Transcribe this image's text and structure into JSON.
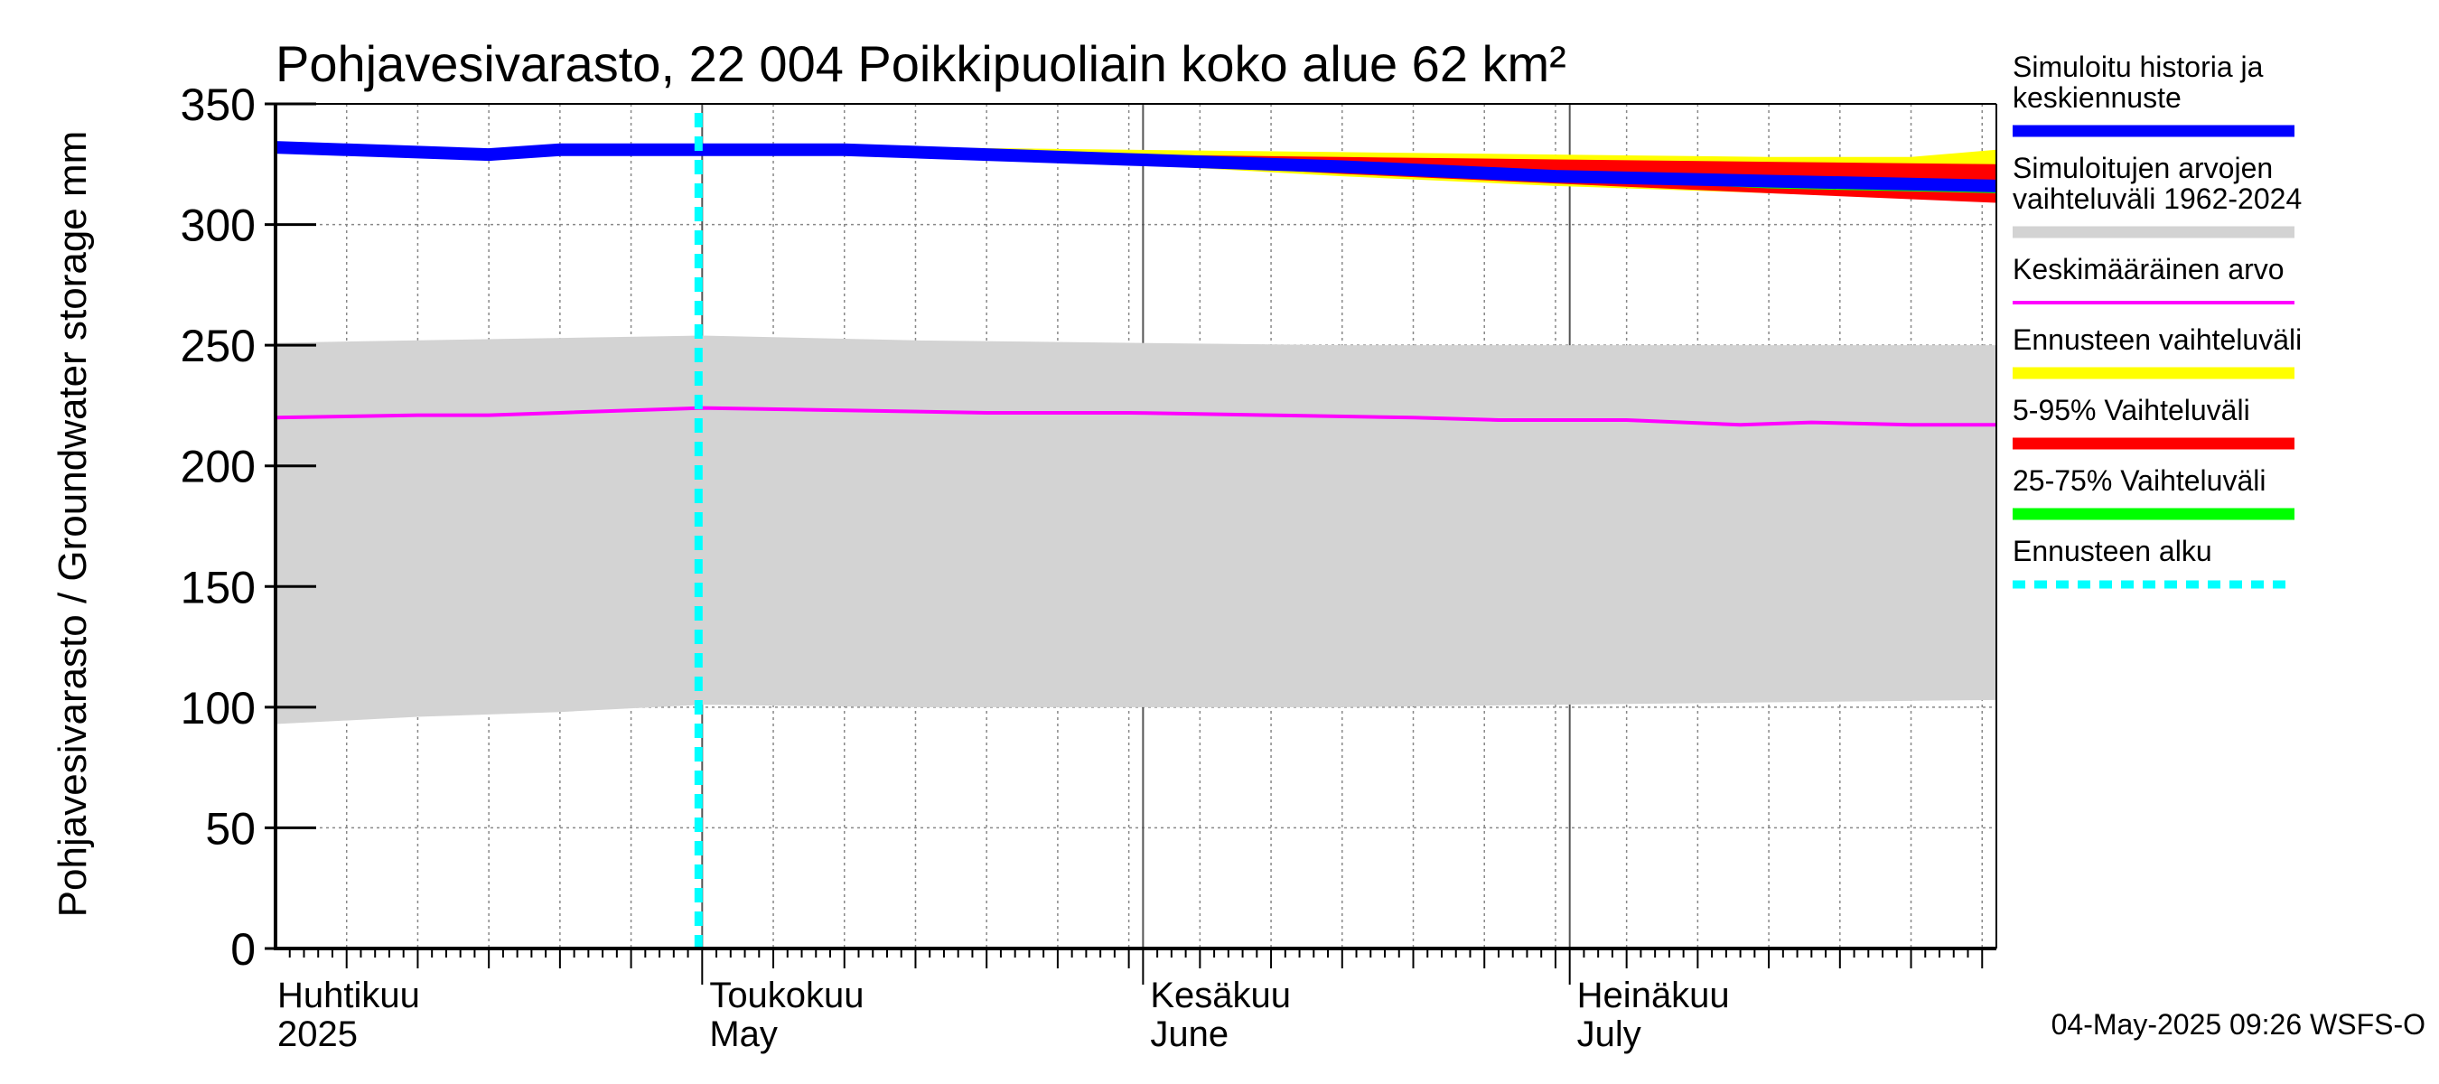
{
  "chart_data": {
    "type": "area",
    "title": "Pohjavesivarasto, 22 004 Poikkipuoliain koko alue 62 km²",
    "ylabel": "Pohjavesivarasto / Groundwater storage   mm",
    "ylim": [
      0,
      350
    ],
    "yticks": [
      0,
      50,
      100,
      150,
      200,
      250,
      300,
      350
    ],
    "xlim_days": [
      0,
      121
    ],
    "x_months": [
      {
        "day": 0,
        "line1": "Huhtikuu",
        "line2": "2025"
      },
      {
        "day": 30,
        "line1": "Toukokuu",
        "line2": "May"
      },
      {
        "day": 61,
        "line1": "Kesäkuu",
        "line2": "June"
      },
      {
        "day": 91,
        "line1": "Heinäkuu",
        "line2": "July"
      }
    ],
    "forecast_start_day": 30,
    "series": [
      {
        "name": "Simuloitujen arvojen vaihteluväli 1962-2024",
        "kind": "band",
        "color": "#d3d3d3",
        "points": [
          [
            0,
            93,
            251
          ],
          [
            10,
            96,
            252
          ],
          [
            20,
            98,
            253
          ],
          [
            30,
            101,
            254
          ],
          [
            45,
            100,
            252
          ],
          [
            60,
            100,
            251
          ],
          [
            75,
            100,
            250
          ],
          [
            90,
            101,
            250
          ],
          [
            105,
            102,
            250
          ],
          [
            121,
            103,
            250
          ]
        ]
      },
      {
        "name": "Keskimääräinen arvo",
        "kind": "line",
        "color": "#ff00ff",
        "points": [
          [
            0,
            220
          ],
          [
            10,
            221
          ],
          [
            15,
            221
          ],
          [
            20,
            222
          ],
          [
            30,
            224
          ],
          [
            40,
            223
          ],
          [
            50,
            222
          ],
          [
            60,
            222
          ],
          [
            70,
            221
          ],
          [
            80,
            220
          ],
          [
            86,
            219
          ],
          [
            95,
            219
          ],
          [
            103,
            217
          ],
          [
            108,
            218
          ],
          [
            115,
            217
          ],
          [
            121,
            217
          ]
        ]
      },
      {
        "name": "Ennusteen vaihteluväli",
        "kind": "band",
        "color": "#ffff00",
        "points": [
          [
            30,
            331,
            331
          ],
          [
            45,
            329,
            332
          ],
          [
            60,
            325,
            331
          ],
          [
            75,
            320,
            330
          ],
          [
            90,
            316,
            329
          ],
          [
            105,
            313,
            328
          ],
          [
            115,
            311,
            328
          ],
          [
            121,
            310,
            331
          ]
        ]
      },
      {
        "name": "5-95% Vaihteluväli",
        "kind": "band",
        "color": "#ff0000",
        "points": [
          [
            30,
            331,
            331
          ],
          [
            45,
            329,
            331
          ],
          [
            60,
            326,
            329
          ],
          [
            75,
            321,
            328
          ],
          [
            90,
            317,
            327
          ],
          [
            105,
            313,
            326
          ],
          [
            121,
            309,
            325
          ]
        ]
      },
      {
        "name": "25-75% Vaihteluväli",
        "kind": "band",
        "color": "#00ff00",
        "points": [
          [
            30,
            331,
            331
          ],
          [
            45,
            329,
            330
          ],
          [
            60,
            327,
            328
          ],
          [
            75,
            322,
            325
          ],
          [
            90,
            319,
            321
          ],
          [
            105,
            315,
            318
          ],
          [
            121,
            313,
            316
          ]
        ]
      },
      {
        "name": "Simuloitu historia ja keskiennuste",
        "kind": "line",
        "color": "#0000ff",
        "points": [
          [
            0,
            332
          ],
          [
            10,
            330
          ],
          [
            15,
            329
          ],
          [
            20,
            331
          ],
          [
            30,
            331
          ],
          [
            40,
            331
          ],
          [
            50,
            329
          ],
          [
            60,
            327
          ],
          [
            75,
            324
          ],
          [
            90,
            320
          ],
          [
            105,
            318
          ],
          [
            121,
            316
          ]
        ]
      }
    ],
    "legend": [
      {
        "lines": [
          "Simuloitu historia ja",
          "keskiennuste"
        ],
        "color": "#0000ff",
        "style": "solid"
      },
      {
        "lines": [
          "Simuloitujen arvojen",
          "vaihteluväli 1962-2024"
        ],
        "color": "#d3d3d3",
        "style": "solid"
      },
      {
        "lines": [
          "Keskimääräinen arvo"
        ],
        "color": "#ff00ff",
        "style": "thin"
      },
      {
        "lines": [
          "Ennusteen vaihteluväli"
        ],
        "color": "#ffff00",
        "style": "solid"
      },
      {
        "lines": [
          "5-95% Vaihteluväli"
        ],
        "color": "#ff0000",
        "style": "solid"
      },
      {
        "lines": [
          "25-75% Vaihteluväli"
        ],
        "color": "#00ff00",
        "style": "solid"
      },
      {
        "lines": [
          "Ennusteen alku"
        ],
        "color": "#00ffff",
        "style": "dashed"
      }
    ],
    "legend_position": "right",
    "grid": true
  },
  "footer": "04-May-2025 09:26 WSFS-O"
}
